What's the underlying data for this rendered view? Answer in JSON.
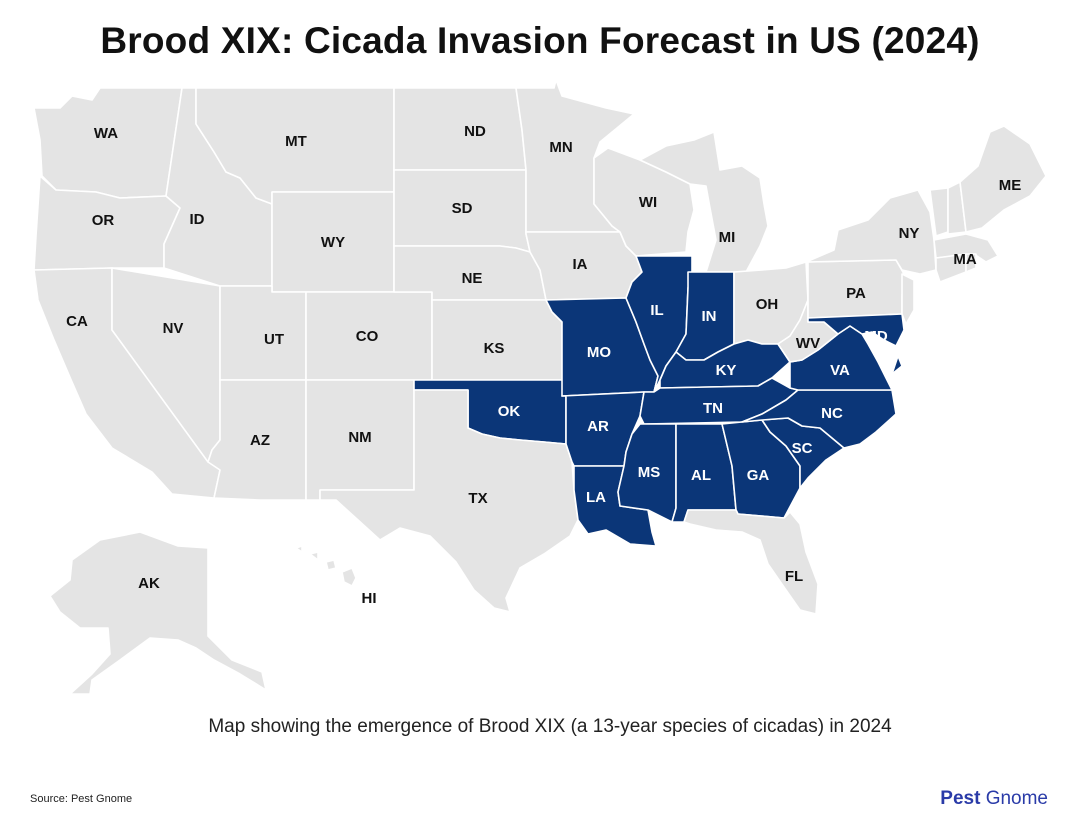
{
  "title": "Brood XIX: Cicada Invasion Forecast in US (2024)",
  "caption": "Map showing the emergence of Brood XIX (a 13-year species of cicadas) in 2024",
  "source": "Source: Pest Gnome",
  "brand": {
    "part1": "Pest",
    "part2": "Gnome"
  },
  "colors": {
    "highlighted": "#0b3678",
    "other": "#e4e4e4",
    "border": "#ffffff"
  },
  "map": {
    "highlighted_states": [
      "OK",
      "MO",
      "AR",
      "LA",
      "IL",
      "IN",
      "KY",
      "TN",
      "MS",
      "AL",
      "GA",
      "SC",
      "NC",
      "VA",
      "MD"
    ],
    "states": {
      "WA": "WA",
      "OR": "OR",
      "CA": "CA",
      "ID": "ID",
      "NV": "NV",
      "MT": "MT",
      "WY": "WY",
      "UT": "UT",
      "AZ": "AZ",
      "CO": "CO",
      "NM": "NM",
      "ND": "ND",
      "SD": "SD",
      "NE": "NE",
      "KS": "KS",
      "OK": "OK",
      "TX": "TX",
      "MN": "MN",
      "IA": "IA",
      "MO": "MO",
      "AR": "AR",
      "LA": "LA",
      "WI": "WI",
      "IL": "IL",
      "MI": "MI",
      "IN": "IN",
      "OH": "OH",
      "KY": "KY",
      "TN": "TN",
      "MS": "MS",
      "AL": "AL",
      "GA": "GA",
      "FL": "FL",
      "SC": "SC",
      "NC": "NC",
      "VA": "VA",
      "WV": "WV",
      "PA": "PA",
      "NY": "NY",
      "MD": "MD",
      "MA": "MA",
      "ME": "ME",
      "AK": "AK",
      "HI": "HI"
    }
  }
}
